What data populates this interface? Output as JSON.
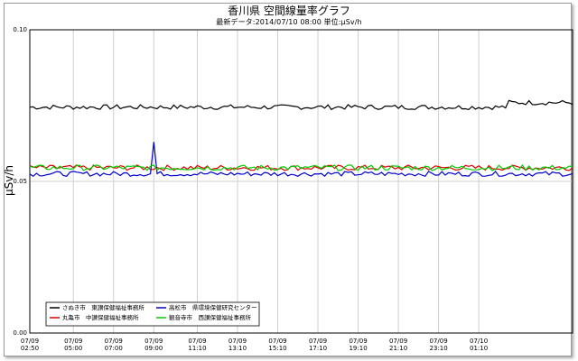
{
  "chart_data": {
    "type": "line",
    "title": "香川県 空間線量率グラフ",
    "subtitle": "最新データ:2014/07/10 08:00  単位:μSv/h",
    "ylabel": "μSv/h",
    "ylim": [
      0,
      0.1
    ],
    "yticks": [
      "0.00",
      "0.05",
      "0.10"
    ],
    "xticks": [
      {
        "date": "07/09",
        "time": "02:50"
      },
      {
        "date": "07/09",
        "time": "05:00"
      },
      {
        "date": "07/09",
        "time": "07:00"
      },
      {
        "date": "07/09",
        "time": "09:00"
      },
      {
        "date": "07/09",
        "time": "11:10"
      },
      {
        "date": "07/09",
        "time": "13:10"
      },
      {
        "date": "07/09",
        "time": "15:10"
      },
      {
        "date": "07/09",
        "time": "17:10"
      },
      {
        "date": "07/09",
        "time": "19:10"
      },
      {
        "date": "07/09",
        "time": "21:10"
      },
      {
        "date": "07/09",
        "time": "23:10"
      },
      {
        "date": "07/10",
        "time": "01:10"
      }
    ],
    "x_start": "07/09 02:50",
    "x_end": "07/10 05:50",
    "interval_minutes": 10,
    "grid": true,
    "legend_position": "bottom-left",
    "series": [
      {
        "name": "さぬき市　東讃保健福祉事務所",
        "color": "#000000",
        "base": 0.0745,
        "amp": 0.0008,
        "values_desc": "approximately 0.074-0.076 throughout, rising to ~0.077 near end"
      },
      {
        "name": "丸亀市　中讃保健福祉事務所",
        "color": "#e00000",
        "base": 0.0545,
        "amp": 0.0009
      },
      {
        "name": "高松市　県環境保健研究センター",
        "color": "#0000cc",
        "base": 0.0525,
        "amp": 0.0008,
        "spike": {
          "x": "07/09 09:00",
          "value": 0.063
        }
      },
      {
        "name": "観音寺市　西讃保健福祉事務所",
        "color": "#00cc00",
        "base": 0.0545,
        "amp": 0.0009
      }
    ]
  }
}
